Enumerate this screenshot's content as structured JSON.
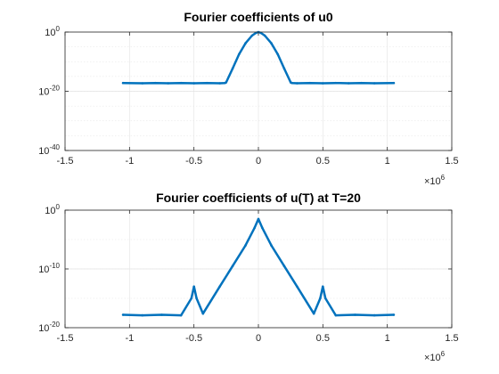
{
  "figure": {
    "background": "#ffffff",
    "line_color": "#0072BD",
    "grid_color": "#e3e3e3",
    "axis_color": "#262626"
  },
  "chart_data": [
    {
      "type": "line",
      "title": "Fourier coefficients of u0",
      "xlabel": "",
      "ylabel": "",
      "x_scale": "linear",
      "y_scale": "log",
      "xlim": [
        -1500000,
        1500000
      ],
      "ylim": [
        1e-40,
        1
      ],
      "x_ticks": [
        -1500000,
        -1000000,
        -500000,
        0,
        500000,
        1000000,
        1500000
      ],
      "x_tick_labels": [
        "-1.5",
        "-1",
        "-0.5",
        "0",
        "0.5",
        "1",
        "1.5"
      ],
      "x_multiplier": {
        "base": "×10",
        "exponent": "6"
      },
      "y_ticks": [
        {
          "base": "10",
          "exponent": "0"
        },
        {
          "base": "10",
          "exponent": "-20"
        },
        {
          "base": "10",
          "exponent": "-40"
        }
      ],
      "grid": true,
      "legend": "none",
      "series": [
        {
          "x": [
            -1050000,
            -900000,
            -800000,
            -700000,
            -600000,
            -500000,
            -400000,
            -300000,
            -260000,
            -250000,
            -200000,
            -150000,
            -100000,
            -50000,
            -20000,
            0,
            20000,
            50000,
            100000,
            150000,
            200000,
            250000,
            260000,
            300000,
            400000,
            500000,
            600000,
            700000,
            800000,
            900000,
            1050000
          ],
          "log10_y": [
            -17.2,
            -17.3,
            -17.2,
            -17.3,
            -17.2,
            -17.3,
            -17.2,
            -17.3,
            -17.2,
            -17.0,
            -12.3,
            -7.5,
            -3.8,
            -1.2,
            -0.3,
            0,
            -0.3,
            -1.2,
            -3.8,
            -7.5,
            -12.3,
            -17.0,
            -17.2,
            -17.3,
            -17.2,
            -17.3,
            -17.2,
            -17.3,
            -17.2,
            -17.3,
            -17.2
          ]
        }
      ]
    },
    {
      "type": "line",
      "title": "Fourier coefficients of u(T) at T=20",
      "xlabel": "",
      "ylabel": "",
      "x_scale": "linear",
      "y_scale": "log",
      "xlim": [
        -1500000,
        1500000
      ],
      "ylim": [
        1e-20,
        1
      ],
      "x_ticks": [
        -1500000,
        -1000000,
        -500000,
        0,
        500000,
        1000000,
        1500000
      ],
      "x_tick_labels": [
        "-1.5",
        "-1",
        "-0.5",
        "0",
        "0.5",
        "1",
        "1.5"
      ],
      "x_multiplier": {
        "base": "×10",
        "exponent": "6"
      },
      "y_ticks": [
        {
          "base": "10",
          "exponent": "0"
        },
        {
          "base": "10",
          "exponent": "-10"
        },
        {
          "base": "10",
          "exponent": "-20"
        }
      ],
      "grid": true,
      "legend": "none",
      "series": [
        {
          "x": [
            -1050000,
            -900000,
            -750000,
            -600000,
            -520000,
            -500000,
            -480000,
            -430000,
            -300000,
            -200000,
            -100000,
            -30000,
            0,
            30000,
            100000,
            200000,
            300000,
            430000,
            480000,
            500000,
            520000,
            600000,
            750000,
            900000,
            1050000
          ],
          "log10_y": [
            -17.8,
            -17.9,
            -17.8,
            -17.9,
            -15.0,
            -13.0,
            -15.0,
            -17.6,
            -13.0,
            -9.5,
            -6.0,
            -3.0,
            -1.5,
            -3.0,
            -6.0,
            -9.5,
            -13.0,
            -17.6,
            -15.0,
            -13.0,
            -15.0,
            -17.9,
            -17.8,
            -17.9,
            -17.8
          ]
        }
      ]
    }
  ]
}
